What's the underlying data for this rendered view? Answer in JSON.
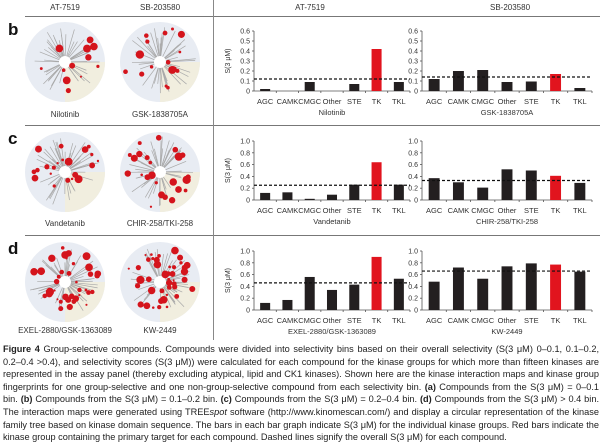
{
  "column_headers": {
    "left_a": "AT-7519",
    "left_b": "SB-203580",
    "right_a": "AT-7519",
    "right_b": "SB-203580"
  },
  "panels": [
    {
      "letter": "b",
      "maps": [
        "Nilotinib",
        "GSK-1838705A"
      ]
    },
    {
      "letter": "c",
      "maps": [
        "Vandetanib",
        "CHIR-258/TKI-258"
      ]
    },
    {
      "letter": "d",
      "maps": [
        "EXEL-2880/GSK-1363089",
        "KW-2449"
      ]
    }
  ],
  "colors": {
    "bar": "#231f20",
    "primary_bar": "#e1141e",
    "map_dot": "#d4141c",
    "map_bg": "#e8ecf3"
  },
  "chart_data": [
    {
      "type": "bar",
      "panel": "b",
      "name": "Nilotinib",
      "ylabel": "S(3 μM)",
      "ylim": [
        0,
        0.6
      ],
      "yticks": [
        "0",
        "0.1",
        "0.2",
        "0.3",
        "0.4",
        "0.5",
        "0.6"
      ],
      "categories": [
        "AGC",
        "CAMK",
        "CMGC",
        "Other",
        "STE",
        "TK",
        "TKL"
      ],
      "values": [
        0.02,
        0,
        0.09,
        0,
        0.07,
        0.42,
        0.09
      ],
      "primary": "TK",
      "overall": 0.12
    },
    {
      "type": "bar",
      "panel": "b",
      "name": "GSK-1838705A",
      "ylabel": "",
      "ylim": [
        0,
        0.6
      ],
      "yticks": [
        "0",
        "0.1",
        "0.2",
        "0.3",
        "0.4",
        "0.5",
        "0.6"
      ],
      "categories": [
        "AGC",
        "CAMK",
        "CMGC",
        "Other",
        "STE",
        "TK",
        "TKL"
      ],
      "values": [
        0.12,
        0.2,
        0.21,
        0.09,
        0.095,
        0.17,
        0.03
      ],
      "primary": "TK",
      "overall": 0.14
    },
    {
      "type": "bar",
      "panel": "c",
      "name": "Vandetanib",
      "ylabel": "S(3 μM)",
      "ylim": [
        0,
        1.0
      ],
      "yticks": [
        "0",
        "0.2",
        "0.4",
        "0.6",
        "0.8",
        "1.0"
      ],
      "categories": [
        "AGC",
        "CAMK",
        "CMGC",
        "Other",
        "STE",
        "TK",
        "TKL"
      ],
      "values": [
        0.12,
        0.13,
        0.02,
        0.09,
        0.26,
        0.64,
        0.26
      ],
      "primary": "TK",
      "overall": 0.25
    },
    {
      "type": "bar",
      "panel": "c",
      "name": "CHIR-258/TKI-258",
      "ylabel": "",
      "ylim": [
        0,
        1.0
      ],
      "yticks": [
        "0",
        "0.2",
        "0.4",
        "0.6",
        "0.8",
        "1.0"
      ],
      "categories": [
        "AGC",
        "CAMK",
        "CMGC",
        "Other",
        "STE",
        "TK",
        "TKL"
      ],
      "values": [
        0.37,
        0.3,
        0.21,
        0.52,
        0.5,
        0.41,
        0.29
      ],
      "primary": "TK",
      "overall": 0.33
    },
    {
      "type": "bar",
      "panel": "d",
      "name": "EXEL-2880/GSK-1363089",
      "ylabel": "S(3 μM)",
      "ylim": [
        0,
        1.0
      ],
      "yticks": [
        "0",
        "0.2",
        "0.4",
        "0.6",
        "0.8",
        "1.0"
      ],
      "categories": [
        "AGC",
        "CAMK",
        "CMGC",
        "Other",
        "STE",
        "TK",
        "TKL"
      ],
      "values": [
        0.12,
        0.17,
        0.56,
        0.34,
        0.43,
        0.9,
        0.53
      ],
      "primary": "TK",
      "overall": 0.46
    },
    {
      "type": "bar",
      "panel": "d",
      "name": "KW-2449",
      "ylabel": "",
      "ylim": [
        0,
        1.0
      ],
      "yticks": [
        "0",
        "0.2",
        "0.4",
        "0.6",
        "0.8",
        "1.0"
      ],
      "categories": [
        "AGC",
        "CAMK",
        "CMGC",
        "Other",
        "STE",
        "TK",
        "TKL"
      ],
      "values": [
        0.48,
        0.72,
        0.53,
        0.74,
        0.79,
        0.77,
        0.65
      ],
      "primary": "TK",
      "overall": 0.66
    }
  ],
  "caption": {
    "label": "Figure 4",
    "title": " Group-selective compounds. ",
    "p1": "Compounds were divided into selectivity bins based on their overall selectivity (S(3 μM) 0–0.1, 0.1–0.2, 0.2–0.4 >0.4), and selectivity scores (S(3 μM)) were calculated for each compound for the kinase groups for which more than fifteen kinases are represented in the assay panel (thereby excluding atypical, lipid and CK1 kinases). Shown here are the kinase interaction maps and kinase group fingerprints for one group-selective and one non-group-selective compound from each selectivity bin. ",
    "a": "(a)",
    "a_text": " Compounds from the S(3 μM) = 0–0.1 bin. ",
    "b": "(b)",
    "b_text": " Compounds from the S(3 μM) = 0.1–0.2 bin. ",
    "c": "(c)",
    "c_text": " Compounds from the S(3 μM) = 0.2–0.4 bin. ",
    "d": "(d)",
    "d_text": " Compounds from the S(3 μM) > 0.4 bin. The interaction maps were generated using TREE",
    "spot": "spot",
    "p2": " software (http://www.kinomescan.com/) and display a circular representation of the kinase family tree based on kinase domain sequence. The bars in each bar graph indicate S(3 μM) for the individual kinase groups. Red bars indicate the kinase group containing the primary target for each compound. Dashed lines signify the overall S(3 μM) for each compound."
  }
}
